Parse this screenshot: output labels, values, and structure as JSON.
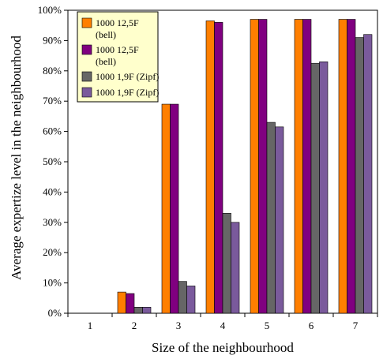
{
  "chart_data": {
    "type": "bar",
    "title": "",
    "xlabel": "Size of the neighbourhood",
    "ylabel": "Average expertize level in the neighbourhood",
    "categories": [
      "1",
      "2",
      "3",
      "4",
      "5",
      "6",
      "7"
    ],
    "ylim": [
      0,
      100
    ],
    "yticks": [
      "0%",
      "10%",
      "20%",
      "30%",
      "40%",
      "50%",
      "60%",
      "70%",
      "80%",
      "90%",
      "100%"
    ],
    "grid": false,
    "legend_position": "top-left",
    "series": [
      {
        "name": "1000 12,5F (bell)",
        "color": "#ff7f00",
        "values": [
          0,
          7,
          69,
          96.5,
          97,
          97,
          97
        ]
      },
      {
        "name": "1000 12,5F (bell)",
        "color": "#800080",
        "values": [
          0,
          6.5,
          69,
          96,
          97,
          97,
          97
        ]
      },
      {
        "name": "1000 1,9F (Zipf)",
        "color": "#666666",
        "values": [
          0,
          2,
          10.5,
          33,
          63,
          82.5,
          91
        ]
      },
      {
        "name": "1000 1,9F (Zipf)",
        "color": "#7a5a9c",
        "values": [
          0,
          2,
          9,
          30,
          61.5,
          83,
          92
        ]
      }
    ]
  }
}
